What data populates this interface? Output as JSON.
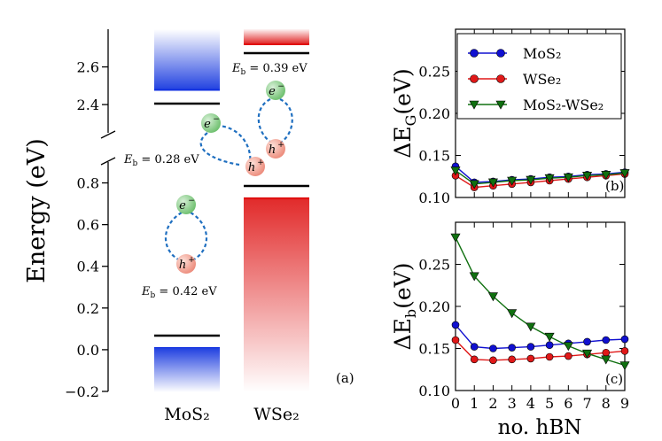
{
  "chart_data": [
    {
      "panel": "(a)",
      "type": "band-diagram",
      "ylabel": "Energy (eV)",
      "lower_axis": {
        "ylim": [
          -0.2,
          0.9
        ],
        "ticks": [
          "−0.2",
          "0.0",
          "0.2",
          "0.4",
          "0.6",
          "0.8"
        ],
        "tick_values": [
          -0.2,
          0.0,
          0.2,
          0.4,
          0.6,
          0.8
        ]
      },
      "upper_axis": {
        "ylim": [
          2.25,
          2.8
        ],
        "ticks": [
          "2.4",
          "2.6"
        ],
        "tick_values": [
          2.4,
          2.6
        ]
      },
      "materials": [
        {
          "name": "MoS2",
          "label": "MoS₂",
          "color": "#2040e0",
          "conduction_band_min": 2.47,
          "valence_band_max": 0.0,
          "exciton_level_conduction": 2.39,
          "exciton_level_valence": 0.06
        },
        {
          "name": "WSe2",
          "label": "WSe₂",
          "color": "#e02020",
          "conduction_band_min": 2.71,
          "valence_band_max": 0.71,
          "exciton_level_conduction": 2.67,
          "exciton_level_valence": 0.76
        }
      ],
      "annotations": {
        "eb_intra_mos2": "0.42 eV",
        "eb_interlayer": "0.28 eV",
        "eb_intra_wse2": "0.39 eV",
        "eb_prefix": "E",
        "eb_sub": "b",
        "eb_eq": " = ",
        "electron_base": "e",
        "electron_sup": "−",
        "hole_base": "h",
        "hole_sup": "+",
        "panel_label": "(a)"
      },
      "colors": {
        "electron": "#7ec87e",
        "hole": "#f09080",
        "link": "#1f6fc0"
      }
    },
    {
      "panel": "(b)",
      "type": "line",
      "ylabel_main": "ΔE",
      "ylabel_sub": "G",
      "ylabel_unit": "(eV)",
      "ylim": [
        0.1,
        0.3
      ],
      "yticks": [
        "0.10",
        "0.15",
        "0.20",
        "0.25"
      ],
      "ytick_values": [
        0.1,
        0.15,
        0.2,
        0.25
      ],
      "x": [
        0,
        1,
        2,
        3,
        4,
        5,
        6,
        7,
        8,
        9
      ],
      "series": [
        {
          "name": "MoS2",
          "label": "MoS₂",
          "color": "#1010d0",
          "marker": "circle",
          "values": [
            0.137,
            0.118,
            0.119,
            0.121,
            0.122,
            0.124,
            0.125,
            0.127,
            0.128,
            0.13
          ]
        },
        {
          "name": "WSe2",
          "label": "WSe₂",
          "color": "#e01818",
          "marker": "circle",
          "values": [
            0.126,
            0.112,
            0.114,
            0.116,
            0.118,
            0.12,
            0.122,
            0.124,
            0.126,
            0.128
          ]
        },
        {
          "name": "MoS2-WSe2",
          "label": "MoS₂-WSe₂",
          "color": "#107010",
          "marker": "triangle-down",
          "values": [
            0.132,
            0.116,
            0.118,
            0.12,
            0.121,
            0.123,
            0.124,
            0.126,
            0.127,
            0.129
          ]
        }
      ],
      "legend": "top",
      "panel_label": "(b)"
    },
    {
      "panel": "(c)",
      "type": "line",
      "ylabel_main": "ΔE",
      "ylabel_sub": "b",
      "ylabel_unit": "(eV)",
      "xlabel": "no. hBN",
      "ylim": [
        0.1,
        0.3
      ],
      "yticks": [
        "0.10",
        "0.15",
        "0.20",
        "0.25"
      ],
      "ytick_values": [
        0.1,
        0.15,
        0.2,
        0.25
      ],
      "x": [
        0,
        1,
        2,
        3,
        4,
        5,
        6,
        7,
        8,
        9
      ],
      "xticks": [
        "0",
        "1",
        "2",
        "3",
        "4",
        "5",
        "6",
        "7",
        "8",
        "9"
      ],
      "series": [
        {
          "name": "MoS2",
          "label": "MoS₂",
          "color": "#1010d0",
          "marker": "circle",
          "values": [
            0.178,
            0.152,
            0.15,
            0.151,
            0.152,
            0.154,
            0.156,
            0.158,
            0.16,
            0.161
          ]
        },
        {
          "name": "WSe2",
          "label": "WSe₂",
          "color": "#e01818",
          "marker": "circle",
          "values": [
            0.16,
            0.137,
            0.136,
            0.137,
            0.138,
            0.14,
            0.141,
            0.143,
            0.145,
            0.147
          ]
        },
        {
          "name": "MoS2-WSe2",
          "label": "MoS₂-WSe₂",
          "color": "#107010",
          "marker": "triangle-down",
          "values": [
            0.282,
            0.236,
            0.212,
            0.192,
            0.176,
            0.164,
            0.153,
            0.144,
            0.137,
            0.13
          ]
        }
      ],
      "panel_label": "(c)"
    }
  ]
}
